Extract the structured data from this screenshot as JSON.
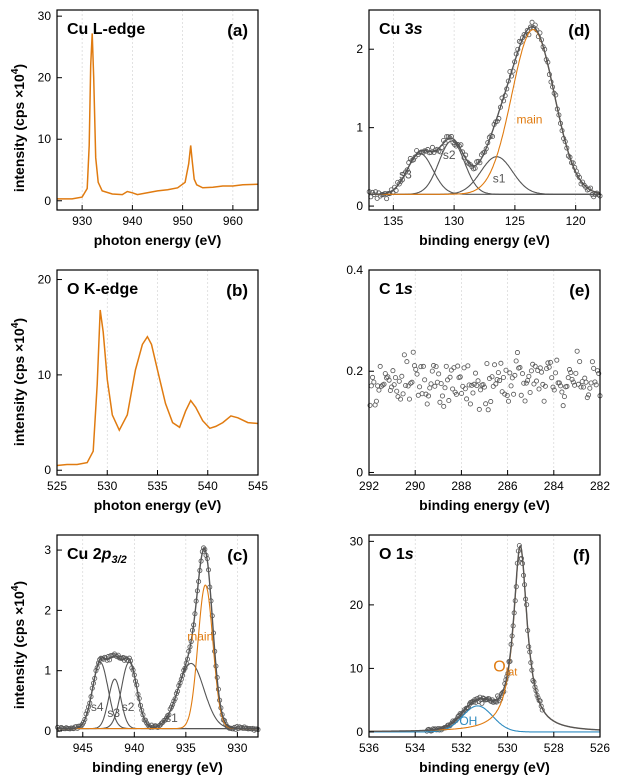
{
  "figure": {
    "colors": {
      "orange": "#E07B10",
      "gray": "#555555",
      "blue": "#2E8BC0",
      "grid": "#cfcfcf",
      "axis": "#000000"
    },
    "ylabel_left": "intensity (cps ×10",
    "ylabel_sup": "4",
    "ylabel_close": ")"
  },
  "chart_data": [
    {
      "id": "a",
      "type": "line",
      "label": "(a)",
      "title": "Cu L-edge",
      "xlabel": "photon energy (eV)",
      "xlim": [
        925,
        965
      ],
      "ylim": [
        -1.5,
        31
      ],
      "xticks": [
        930,
        940,
        950,
        960
      ],
      "yticks": [
        0,
        10,
        20,
        30
      ],
      "reverse_x": false,
      "grid": true,
      "series": [
        {
          "kind": "line",
          "color": "orange",
          "x": [
            925,
            928,
            930,
            931,
            931.4,
            931.7,
            932.0,
            932.3,
            932.7,
            933.2,
            934,
            936,
            938,
            939,
            940,
            941,
            943,
            945,
            947,
            949,
            950.5,
            951.2,
            951.6,
            951.9,
            952.3,
            952.8,
            954,
            956,
            958,
            960,
            962,
            965
          ],
          "y": [
            0.3,
            0.3,
            0.6,
            2.0,
            9.0,
            22.0,
            27.2,
            20.0,
            7.0,
            3.0,
            1.6,
            1.1,
            1.0,
            1.5,
            1.3,
            1.0,
            1.3,
            1.6,
            1.8,
            2.1,
            3.0,
            6.0,
            9.0,
            6.5,
            3.5,
            2.6,
            2.1,
            2.2,
            2.4,
            2.4,
            2.6,
            2.7
          ]
        }
      ],
      "annotations": []
    },
    {
      "id": "d",
      "type": "scatter",
      "label": "(d)",
      "title": "Cu 3s",
      "xlabel": "binding energy (eV)",
      "xlim": [
        137,
        118
      ],
      "ylim": [
        -0.05,
        2.5
      ],
      "xticks": [
        135,
        130,
        125,
        120
      ],
      "yticks": [
        0,
        1,
        2
      ],
      "reverse_x": true,
      "grid": true,
      "generated_points": {
        "color": "gray",
        "range": [
          137,
          118
        ],
        "step": 0.13,
        "noise": 0.04,
        "baseline": 0.15,
        "components": "peaks"
      },
      "series": [
        {
          "kind": "gauss",
          "name": "s3",
          "color": "gray",
          "center": 132.8,
          "height": 0.52,
          "sigma": 1.05
        },
        {
          "kind": "gauss",
          "name": "s2",
          "color": "gray",
          "center": 130.2,
          "height": 0.68,
          "sigma": 1.05
        },
        {
          "kind": "gauss",
          "name": "s1",
          "color": "gray",
          "center": 126.5,
          "height": 0.48,
          "sigma": 1.3
        },
        {
          "kind": "gauss",
          "name": "main",
          "color": "orange",
          "center": 123.5,
          "height": 2.1,
          "sigma": 1.75
        },
        {
          "kind": "envelope",
          "color": "gray"
        }
      ],
      "annotations": [
        {
          "text": "s3",
          "x": 134.0,
          "y": 0.35,
          "color": "gray"
        },
        {
          "text": "s2",
          "x": 130.4,
          "y": 0.6,
          "color": "gray"
        },
        {
          "text": "s1",
          "x": 126.3,
          "y": 0.3,
          "color": "gray"
        },
        {
          "text": "main",
          "x": 123.8,
          "y": 1.05,
          "color": "orange"
        }
      ]
    },
    {
      "id": "b",
      "type": "line",
      "label": "(b)",
      "title": "O K-edge",
      "xlabel": "photon energy (eV)",
      "xlim": [
        525,
        545
      ],
      "ylim": [
        -0.5,
        21
      ],
      "xticks": [
        525,
        530,
        535,
        540,
        545
      ],
      "yticks": [
        0,
        10,
        20
      ],
      "reverse_x": false,
      "grid": true,
      "series": [
        {
          "kind": "line",
          "color": "orange",
          "x": [
            525,
            526,
            527,
            528,
            528.6,
            529.0,
            529.3,
            529.6,
            530.0,
            530.5,
            531.2,
            532.0,
            532.8,
            533.5,
            534.0,
            534.4,
            535.0,
            535.8,
            536.5,
            537.2,
            537.8,
            538.3,
            538.8,
            539.5,
            540.2,
            540.8,
            541.5,
            542.3,
            543.0,
            544.0,
            545
          ],
          "y": [
            0.5,
            0.6,
            0.6,
            0.8,
            2.0,
            9.0,
            16.8,
            14.5,
            9.5,
            5.8,
            4.2,
            5.8,
            10.5,
            13.2,
            14.0,
            13.2,
            10.5,
            7.0,
            5.0,
            4.5,
            6.2,
            7.3,
            6.6,
            5.2,
            4.4,
            4.6,
            5.0,
            5.7,
            5.5,
            5.0,
            4.9
          ]
        }
      ],
      "annotations": []
    },
    {
      "id": "e",
      "type": "scatter",
      "label": "(e)",
      "title": "C 1s",
      "xlabel": "binding energy (eV)",
      "xlim": [
        292,
        282
      ],
      "ylim": [
        -0.005,
        0.4
      ],
      "xticks": [
        292,
        290,
        288,
        286,
        284,
        282
      ],
      "yticks": [
        0.0,
        0.2,
        0.4
      ],
      "reverse_x": true,
      "grid": true,
      "generated_points": {
        "color": "gray",
        "range": [
          292,
          282
        ],
        "step": 0.055,
        "noise": 0.04,
        "baseline": 0.18,
        "components": "none"
      },
      "series": [],
      "annotations": []
    },
    {
      "id": "c",
      "type": "scatter",
      "label": "(c)",
      "title": "Cu 2p",
      "title_sub": "3/2",
      "xlabel": "binding energy (eV)",
      "xlim": [
        947.5,
        928
      ],
      "ylim": [
        -0.1,
        3.25
      ],
      "xticks": [
        945,
        940,
        935,
        930
      ],
      "yticks": [
        0,
        1,
        2,
        3
      ],
      "reverse_x": true,
      "grid": true,
      "generated_points": {
        "color": "gray",
        "range": [
          947.5,
          928
        ],
        "step": 0.12,
        "noise": 0.025,
        "baseline": 0.04,
        "components": "peaks"
      },
      "series": [
        {
          "kind": "gauss",
          "name": "s4",
          "color": "gray",
          "center": 943.3,
          "height": 1.1,
          "sigma": 0.75
        },
        {
          "kind": "gauss",
          "name": "s3",
          "color": "gray",
          "center": 941.9,
          "height": 0.82,
          "sigma": 0.6
        },
        {
          "kind": "gauss",
          "name": "s2",
          "color": "gray",
          "center": 940.5,
          "height": 1.1,
          "sigma": 0.75
        },
        {
          "kind": "gauss",
          "name": "s1",
          "color": "gray",
          "center": 934.5,
          "height": 1.08,
          "sigma": 1.25
        },
        {
          "kind": "gauss",
          "name": "main",
          "color": "orange",
          "center": 933.1,
          "height": 2.38,
          "sigma": 0.72
        },
        {
          "kind": "envelope",
          "color": "gray"
        }
      ],
      "annotations": [
        {
          "text": "s4",
          "x": 943.6,
          "y": 0.33,
          "color": "gray"
        },
        {
          "text": "s3",
          "x": 942.0,
          "y": 0.23,
          "color": "gray"
        },
        {
          "text": "s2",
          "x": 940.6,
          "y": 0.33,
          "color": "gray"
        },
        {
          "text": "main",
          "x": 933.6,
          "y": 1.5,
          "color": "orange"
        },
        {
          "text": "s1",
          "x": 936.4,
          "y": 0.15,
          "color": "gray"
        }
      ]
    },
    {
      "id": "f",
      "type": "scatter",
      "label": "(f)",
      "title": "O 1s",
      "xlabel": "binding energy (eV)",
      "xlim": [
        536,
        526
      ],
      "ylim": [
        -0.8,
        31
      ],
      "xticks": [
        536,
        534,
        532,
        530,
        528,
        526
      ],
      "yticks": [
        0,
        10,
        20,
        30
      ],
      "reverse_x": true,
      "grid": true,
      "generated_points": {
        "color": "gray",
        "range": [
          533.5,
          528.5
        ],
        "step": 0.045,
        "noise": 0.15,
        "baseline": 0.0,
        "components": "peaks"
      },
      "series": [
        {
          "kind": "gauss",
          "name": "OH",
          "color": "blue",
          "center": 531.3,
          "height": 4.1,
          "sigma": 0.65
        },
        {
          "kind": "lorentz",
          "name": "Olat",
          "color": "orange",
          "center": 529.45,
          "height": 29.2,
          "width": 0.36
        },
        {
          "kind": "envelope",
          "color": "gray"
        }
      ],
      "annotations": [
        {
          "text": "OH",
          "x": 531.7,
          "y": 1.1,
          "color": "blue"
        },
        {
          "text": "O",
          "sub": "lat",
          "x": 530.1,
          "y": 9.5,
          "color": "orange"
        }
      ]
    }
  ]
}
